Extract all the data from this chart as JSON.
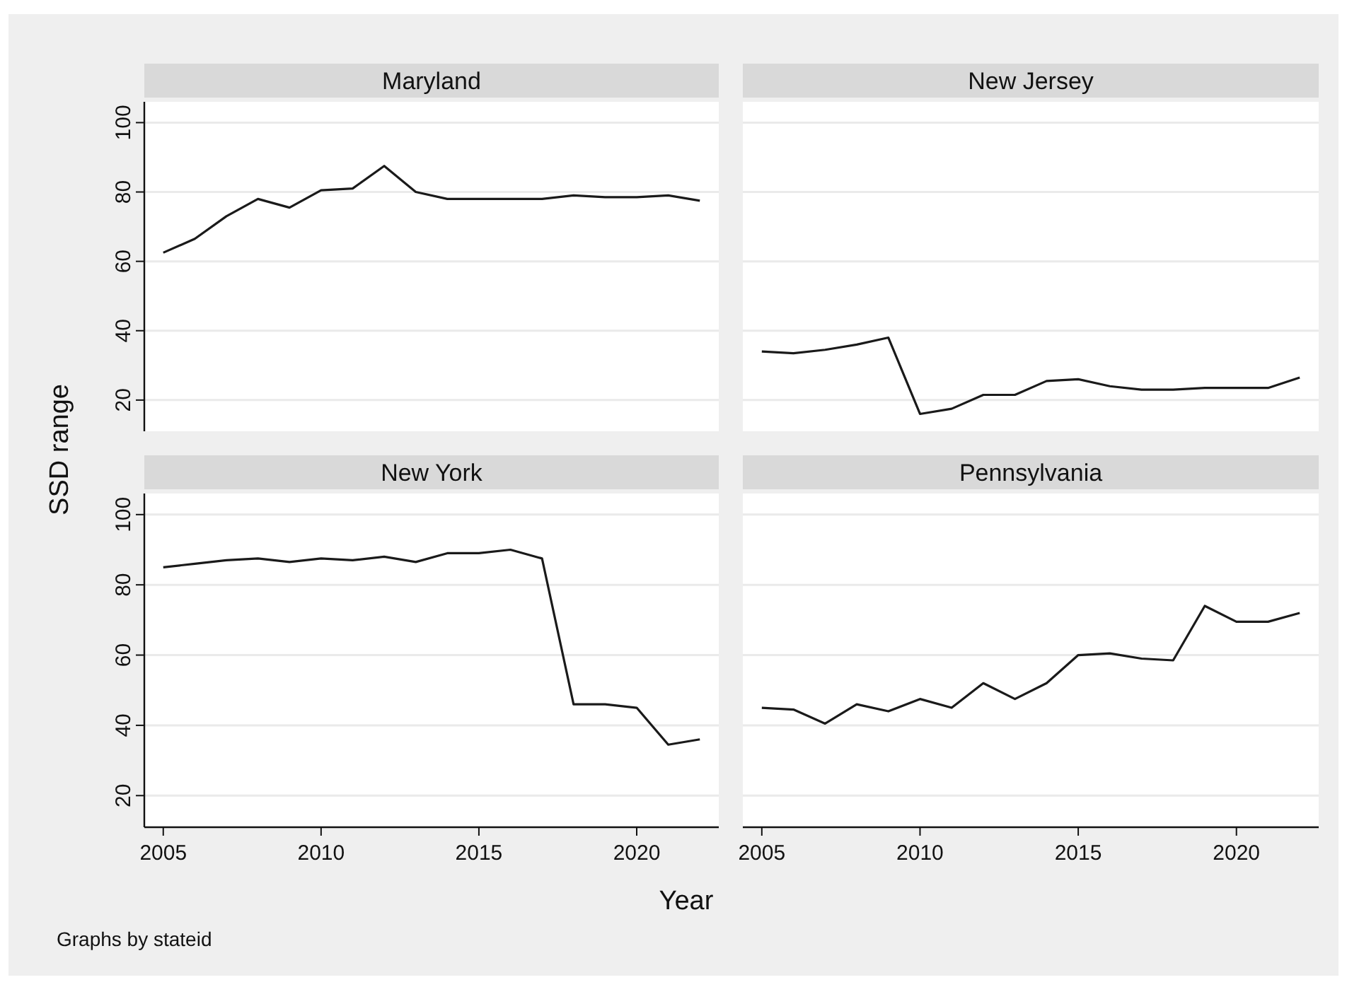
{
  "chart_data": [
    {
      "type": "line",
      "title": "Maryland",
      "ylabel": "SSD range",
      "x": [
        2005,
        2006,
        2007,
        2008,
        2009,
        2010,
        2011,
        2012,
        2013,
        2014,
        2015,
        2016,
        2017,
        2018,
        2019,
        2020,
        2021,
        2022
      ],
      "series": [
        {
          "color": "#1a1a1a",
          "values": [
            62.5,
            66.5,
            73,
            78,
            75.5,
            80.5,
            81,
            87.5,
            80,
            78,
            78,
            78,
            78,
            79,
            78.5,
            78.5,
            79,
            77.5
          ]
        }
      ],
      "xlim": [
        2004.4,
        2022.6
      ],
      "ylim": [
        11,
        106
      ],
      "yticks": [
        20,
        40,
        60,
        80,
        100
      ],
      "grid": "y",
      "tick_labels": "y"
    },
    {
      "type": "line",
      "title": "New Jersey",
      "x": [
        2005,
        2006,
        2007,
        2008,
        2009,
        2010,
        2011,
        2012,
        2013,
        2014,
        2015,
        2016,
        2017,
        2018,
        2019,
        2020,
        2021,
        2022
      ],
      "series": [
        {
          "color": "#1a1a1a",
          "values": [
            34,
            33.5,
            34.5,
            36,
            38,
            16,
            17.5,
            21.5,
            21.5,
            25.5,
            26,
            24,
            23,
            23,
            23.5,
            23.5,
            23.5,
            26.5
          ]
        }
      ],
      "xlim": [
        2004.4,
        2022.6
      ],
      "ylim": [
        11,
        106
      ],
      "yticks": [
        20,
        40,
        60,
        80,
        100
      ],
      "grid": "y",
      "tick_labels": false
    },
    {
      "type": "line",
      "title": "New York",
      "x": [
        2005,
        2006,
        2007,
        2008,
        2009,
        2010,
        2011,
        2012,
        2013,
        2014,
        2015,
        2016,
        2017,
        2018,
        2019,
        2020,
        2021,
        2022
      ],
      "series": [
        {
          "color": "#1a1a1a",
          "values": [
            85,
            86,
            87,
            87.5,
            86.5,
            87.5,
            87,
            88,
            86.5,
            89,
            89,
            90,
            87.5,
            46,
            46,
            45,
            34.5,
            36
          ]
        }
      ],
      "xlim": [
        2004.4,
        2022.6
      ],
      "ylim": [
        11,
        106
      ],
      "xticks": [
        2005,
        2010,
        2015,
        2020
      ],
      "yticks": [
        20,
        40,
        60,
        80,
        100
      ],
      "grid": "y"
    },
    {
      "type": "line",
      "title": "Pennsylvania",
      "xlabel": "Year",
      "annotations": [
        "Graphs by stateid"
      ],
      "x": [
        2005,
        2006,
        2007,
        2008,
        2009,
        2010,
        2011,
        2012,
        2013,
        2014,
        2015,
        2016,
        2017,
        2018,
        2019,
        2020,
        2021,
        2022
      ],
      "series": [
        {
          "color": "#1a1a1a",
          "values": [
            45,
            44.5,
            40.5,
            46,
            44,
            47.5,
            45,
            52,
            47.5,
            52,
            60,
            60.5,
            59,
            58.5,
            74,
            69.5,
            69.5,
            72
          ]
        }
      ],
      "xlim": [
        2004.4,
        2022.6
      ],
      "ylim": [
        11,
        106
      ],
      "xticks": [
        2005,
        2010,
        2015,
        2020
      ],
      "yticks": [
        20,
        40,
        60,
        80,
        100
      ],
      "grid": "y",
      "tick_labels": "x"
    }
  ]
}
